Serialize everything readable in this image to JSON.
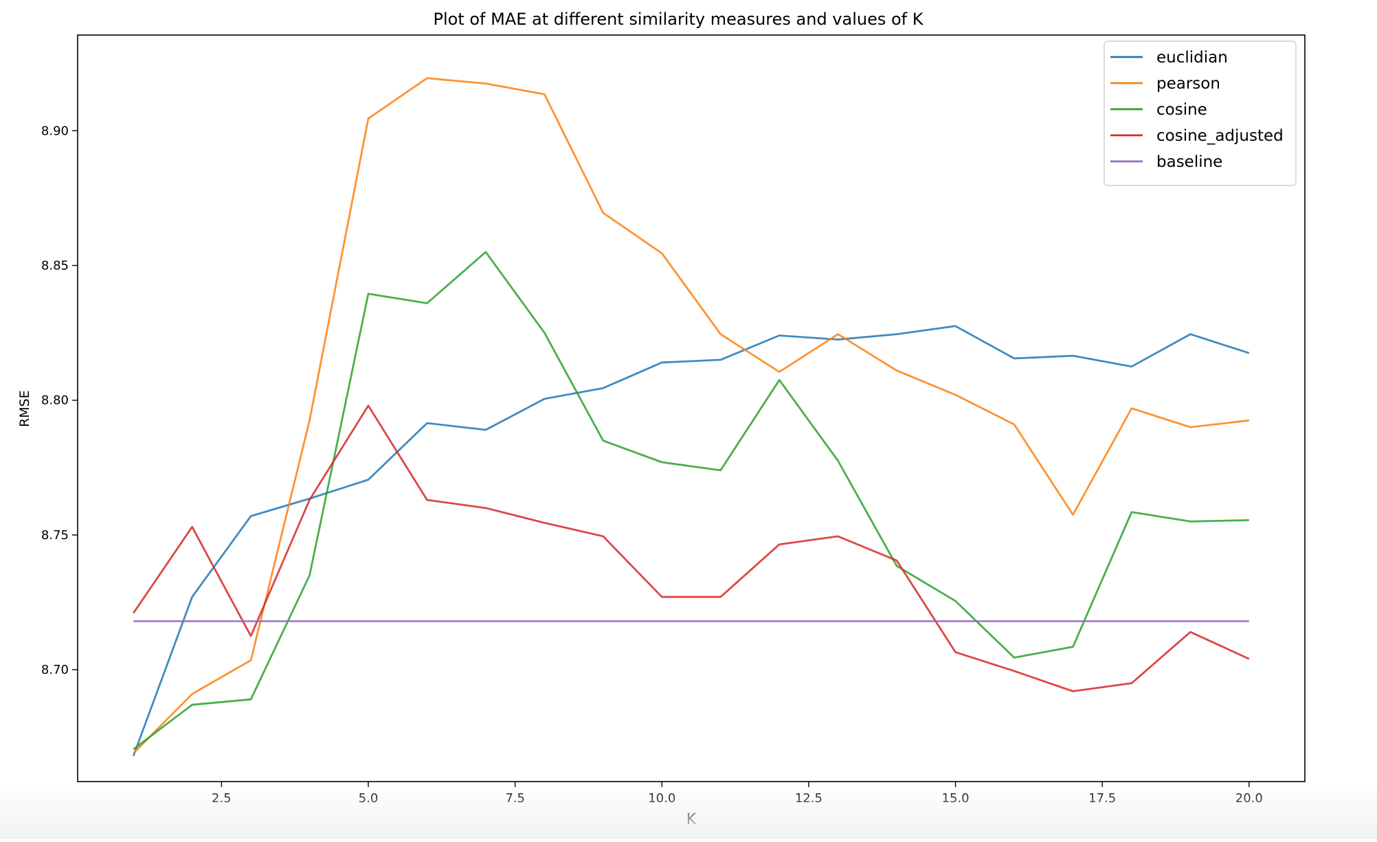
{
  "chart_data": {
    "type": "line",
    "title": "Plot of MAE at different similarity measures and values of K",
    "xlabel": "K",
    "ylabel": "RMSE",
    "xlim": [
      0.05,
      20.95
    ],
    "ylim": [
      8.6585,
      8.9355
    ],
    "x_ticks": [
      2.5,
      5.0,
      7.5,
      10.0,
      12.5,
      15.0,
      17.5,
      20.0
    ],
    "x_tick_labels": [
      "2.5",
      "5.0",
      "7.5",
      "10.0",
      "12.5",
      "15.0",
      "17.5",
      "20.0"
    ],
    "y_ticks": [
      8.7,
      8.75,
      8.8,
      8.85,
      8.9
    ],
    "y_tick_labels": [
      "8.70",
      "8.75",
      "8.80",
      "8.85",
      "8.90"
    ],
    "grid": false,
    "legend_position": "top-right",
    "x": [
      1,
      2,
      3,
      4,
      5,
      6,
      7,
      8,
      9,
      10,
      11,
      12,
      13,
      14,
      15,
      16,
      17,
      18,
      19,
      20
    ],
    "series": [
      {
        "name": "euclidian",
        "color": "#1f77b4",
        "values": [
          8.668,
          8.727,
          8.757,
          8.7635,
          8.7705,
          8.7915,
          8.789,
          8.8005,
          8.8045,
          8.814,
          8.815,
          8.824,
          8.8225,
          8.8245,
          8.8275,
          8.8155,
          8.8165,
          8.8125,
          8.8245,
          8.8175
        ]
      },
      {
        "name": "pearson",
        "color": "#ff7f0e",
        "values": [
          8.669,
          8.691,
          8.7035,
          8.7925,
          8.9045,
          8.9195,
          8.9175,
          8.9135,
          8.8695,
          8.8545,
          8.8245,
          8.8105,
          8.8245,
          8.811,
          8.802,
          8.791,
          8.7575,
          8.797,
          8.79,
          8.7925
        ]
      },
      {
        "name": "cosine",
        "color": "#2ca02c",
        "values": [
          8.6705,
          8.687,
          8.689,
          8.735,
          8.8395,
          8.836,
          8.855,
          8.825,
          8.785,
          8.777,
          8.774,
          8.8075,
          8.7775,
          8.7385,
          8.7255,
          8.7045,
          8.7085,
          8.7585,
          8.755,
          8.7555
        ]
      },
      {
        "name": "cosine_adjusted",
        "color": "#d62728",
        "values": [
          8.721,
          8.753,
          8.7125,
          8.763,
          8.798,
          8.763,
          8.76,
          8.7545,
          8.7495,
          8.727,
          8.727,
          8.7465,
          8.7495,
          8.7405,
          8.7065,
          8.6995,
          8.692,
          8.695,
          8.714,
          8.704
        ]
      },
      {
        "name": "baseline",
        "color": "#9467bd",
        "values": [
          8.718,
          8.718,
          8.718,
          8.718,
          8.718,
          8.718,
          8.718,
          8.718,
          8.718,
          8.718,
          8.718,
          8.718,
          8.718,
          8.718,
          8.718,
          8.718,
          8.718,
          8.718,
          8.718,
          8.718
        ]
      }
    ]
  }
}
